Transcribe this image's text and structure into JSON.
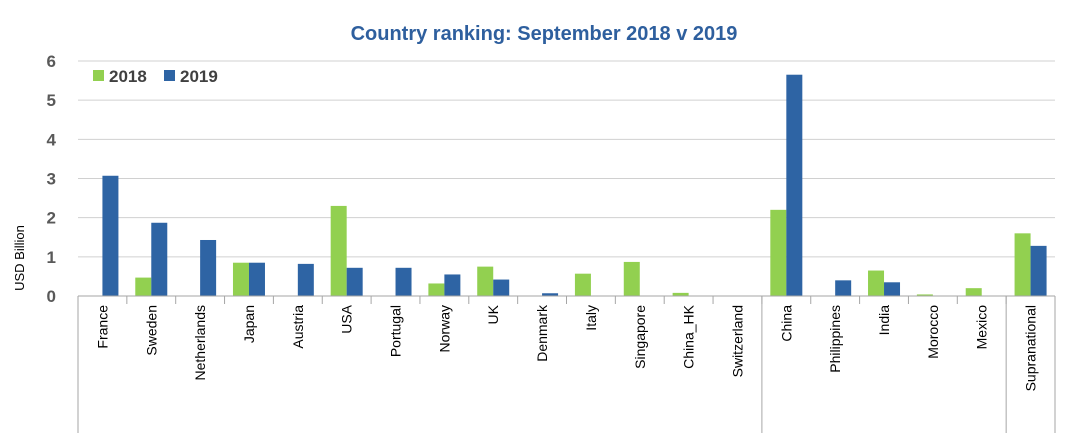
{
  "chart_data": {
    "type": "bar",
    "title": "Country ranking: September 2018 v 2019",
    "ylabel": "USD Billion",
    "xlabel": "",
    "ylim": [
      0,
      6
    ],
    "yticks": [
      "0",
      "1",
      "2",
      "3",
      "4",
      "5",
      "6"
    ],
    "grid": true,
    "legend_position": "top-left",
    "categories": [
      "France",
      "Sweden",
      "Netherlands",
      "Japan",
      "Austria",
      "USA",
      "Portugal",
      "Norway",
      "UK",
      "Denmark",
      "Italy",
      "Singapore",
      "China_HK",
      "Switzerland",
      "China",
      "Philippines",
      "India",
      "Morocco",
      "Mexico",
      "Supranational"
    ],
    "groups": [
      {
        "start": 0,
        "end": 13
      },
      {
        "start": 14,
        "end": 18
      },
      {
        "start": 19,
        "end": 19
      }
    ],
    "series": [
      {
        "name": "2018",
        "color": "#92D050",
        "values": [
          0,
          0.47,
          0,
          0.85,
          0,
          2.3,
          0,
          0.32,
          0.75,
          0,
          0.57,
          0.87,
          0.08,
          0,
          2.2,
          0,
          0.65,
          0.04,
          0.2,
          1.6
        ]
      },
      {
        "name": "2019",
        "color": "#2E64A4",
        "values": [
          3.07,
          1.87,
          1.43,
          0.85,
          0.82,
          0.72,
          0.72,
          0.55,
          0.42,
          0.07,
          0,
          0,
          0,
          0,
          5.65,
          0.4,
          0.35,
          0,
          0,
          1.28
        ]
      }
    ]
  }
}
